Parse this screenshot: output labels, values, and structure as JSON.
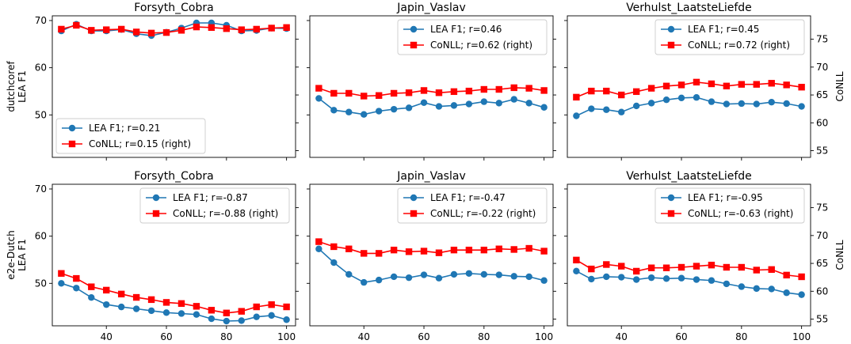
{
  "colors": {
    "lea": "#1f77b4",
    "conll": "#ff0000"
  },
  "chart_data": {
    "type": "line",
    "x": [
      25,
      30,
      35,
      40,
      45,
      50,
      55,
      60,
      65,
      70,
      75,
      80,
      85,
      90,
      95,
      100
    ],
    "xlim": [
      22,
      103
    ],
    "x_ticks": [
      40,
      60,
      80,
      100
    ],
    "left_ylim": [
      41,
      71
    ],
    "left_y_ticks": [
      50,
      60,
      70
    ],
    "right_ylim": [
      53.8,
      79.2
    ],
    "right_y_ticks": [
      55,
      60,
      65,
      70,
      75
    ],
    "right_ylabel": "CoNLL",
    "rows": [
      {
        "ylabel_lines": [
          "dutchcoref",
          "LEA F1"
        ],
        "panels": [
          {
            "title": "Forsyth_Cobra",
            "legend_position": "lower-left",
            "series": [
              {
                "name": "LEA F1; r=0.21",
                "axis": "left",
                "values": [
                  67.8,
                  69.2,
                  67.8,
                  67.8,
                  68.1,
                  67.2,
                  66.8,
                  67.5,
                  68.4,
                  69.5,
                  69.5,
                  69.0,
                  67.8,
                  67.9,
                  68.4,
                  68.3
                ]
              },
              {
                "name": "CoNLL; r=0.15 (right)",
                "axis": "right",
                "values": [
                  76.8,
                  77.5,
                  76.6,
                  76.7,
                  76.8,
                  76.3,
                  76.1,
                  76.2,
                  76.6,
                  77.2,
                  77.1,
                  76.9,
                  76.7,
                  76.8,
                  77.0,
                  77.1
                ]
              }
            ]
          },
          {
            "title": "Japin_Vaslav",
            "legend_position": "upper-right",
            "series": [
              {
                "name": "LEA F1; r=0.46",
                "axis": "left",
                "values": [
                  53.5,
                  51.0,
                  50.6,
                  50.1,
                  50.8,
                  51.2,
                  51.5,
                  52.6,
                  51.8,
                  52.0,
                  52.3,
                  52.8,
                  52.5,
                  53.3,
                  52.5,
                  51.6
                ]
              },
              {
                "name": "CoNLL; r=0.62 (right)",
                "axis": "right",
                "values": [
                  66.2,
                  65.3,
                  65.3,
                  64.8,
                  64.9,
                  65.3,
                  65.4,
                  65.8,
                  65.4,
                  65.6,
                  65.7,
                  66.0,
                  66.0,
                  66.3,
                  66.2,
                  65.8
                ]
              }
            ]
          },
          {
            "title": "Verhulst_LaatsteLiefde",
            "legend_position": "upper-right",
            "series": [
              {
                "name": "LEA F1; r=0.45",
                "axis": "left",
                "values": [
                  49.8,
                  51.3,
                  51.1,
                  50.6,
                  51.9,
                  52.5,
                  53.2,
                  53.6,
                  53.7,
                  52.8,
                  52.3,
                  52.4,
                  52.3,
                  52.7,
                  52.4,
                  51.8
                ]
              },
              {
                "name": "CoNLL; r=0.72 (right)",
                "axis": "right",
                "values": [
                  64.6,
                  65.7,
                  65.7,
                  65.0,
                  65.6,
                  66.2,
                  66.6,
                  66.8,
                  67.3,
                  67.0,
                  66.6,
                  66.9,
                  66.9,
                  67.1,
                  66.8,
                  66.4
                ]
              }
            ]
          }
        ]
      },
      {
        "ylabel_lines": [
          "e2e-Dutch",
          "LEA F1"
        ],
        "panels": [
          {
            "title": "Forsyth_Cobra",
            "legend_position": "upper-right",
            "series": [
              {
                "name": "LEA F1; r=-0.87",
                "axis": "left",
                "values": [
                  50.0,
                  49.0,
                  47.0,
                  45.5,
                  45.0,
                  44.6,
                  44.2,
                  43.8,
                  43.6,
                  43.4,
                  42.5,
                  42.0,
                  42.1,
                  42.9,
                  43.2,
                  42.3
                ]
              },
              {
                "name": "CoNLL; r=-0.88 (right)",
                "axis": "right",
                "values": [
                  63.2,
                  62.3,
                  60.8,
                  60.2,
                  59.5,
                  58.9,
                  58.5,
                  58.0,
                  57.8,
                  57.3,
                  56.6,
                  56.1,
                  56.4,
                  57.2,
                  57.6,
                  57.2
                ]
              }
            ]
          },
          {
            "title": "Japin_Vaslav",
            "legend_position": "upper-right",
            "series": [
              {
                "name": "LEA F1; r=-0.47",
                "axis": "left",
                "values": [
                  57.3,
                  54.4,
                  51.9,
                  50.2,
                  50.7,
                  51.4,
                  51.2,
                  51.8,
                  51.1,
                  51.9,
                  52.1,
                  51.9,
                  51.8,
                  51.5,
                  51.4,
                  50.6
                ]
              },
              {
                "name": "CoNLL; r=-0.22 (right)",
                "axis": "right",
                "values": [
                  68.9,
                  68.0,
                  67.6,
                  66.8,
                  66.8,
                  67.4,
                  67.1,
                  67.2,
                  66.9,
                  67.4,
                  67.4,
                  67.4,
                  67.6,
                  67.5,
                  67.7,
                  67.2
                ]
              }
            ]
          },
          {
            "title": "Verhulst_LaatsteLiefde",
            "legend_position": "upper-right",
            "series": [
              {
                "name": "LEA F1; r=-0.95",
                "axis": "left",
                "values": [
                  52.6,
                  50.9,
                  51.4,
                  51.3,
                  50.8,
                  51.2,
                  51.0,
                  51.1,
                  50.8,
                  50.6,
                  49.9,
                  49.3,
                  48.9,
                  48.8,
                  48.0,
                  47.6
                ]
              },
              {
                "name": "CoNLL; r=-0.63 (right)",
                "axis": "right",
                "values": [
                  65.6,
                  64.0,
                  64.8,
                  64.5,
                  63.6,
                  64.2,
                  64.2,
                  64.3,
                  64.5,
                  64.7,
                  64.3,
                  64.3,
                  63.8,
                  63.9,
                  62.9,
                  62.6
                ]
              }
            ]
          }
        ]
      }
    ]
  }
}
